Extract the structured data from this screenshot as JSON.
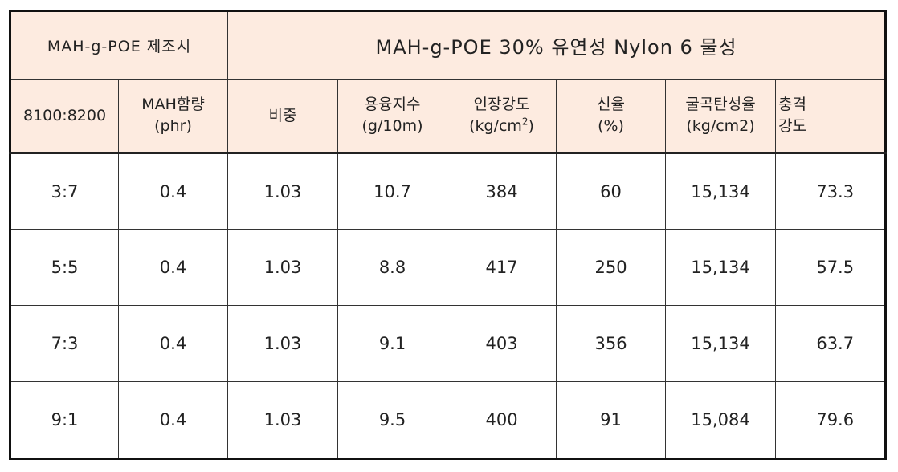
{
  "table": {
    "group_headers": {
      "left": "MAH-g-POE 제조시",
      "right": "MAH-g-POE 30% 유연성 Nylon 6 물성"
    },
    "columns": [
      {
        "line1": "8100:8200",
        "line2": ""
      },
      {
        "line1": "MAH함량",
        "line2": "(phr)"
      },
      {
        "line1": "비중",
        "line2": ""
      },
      {
        "line1": "용융지수",
        "line2": "(g/10m)"
      },
      {
        "line1": "인장강도",
        "line2": "(kg/cm",
        "sup": "2",
        "tail": ")"
      },
      {
        "line1": "신율",
        "line2": "(%)"
      },
      {
        "line1": "굴곡탄성율",
        "line2": "(kg/cm2)"
      },
      {
        "line1": "충격",
        "line2": "강도"
      }
    ],
    "rows": [
      [
        "3:7",
        "0.4",
        "1.03",
        "10.7",
        "384",
        "60",
        "15,134",
        "73.3"
      ],
      [
        "5:5",
        "0.4",
        "1.03",
        "8.8",
        "417",
        "250",
        "15,134",
        "57.5"
      ],
      [
        "7:3",
        "0.4",
        "1.03",
        "9.1",
        "403",
        "356",
        "15,134",
        "63.7"
      ],
      [
        "9:1",
        "0.4",
        "1.03",
        "9.5",
        "400",
        "91",
        "15,084",
        "79.6"
      ]
    ]
  }
}
